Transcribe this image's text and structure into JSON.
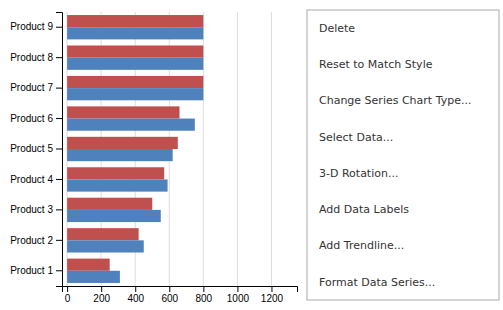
{
  "chart_data": {
    "type": "bar",
    "orientation": "horizontal",
    "categories": [
      "Product 1",
      "Product 2",
      "Product 3",
      "Product 4",
      "Product 5",
      "Product 6",
      "Product 7",
      "Product 8",
      "Product 9"
    ],
    "series": [
      {
        "color": "#C0504D",
        "values": [
          250,
          420,
          500,
          570,
          650,
          660,
          800,
          800,
          800
        ]
      },
      {
        "color": "#4F81BD",
        "values": [
          310,
          450,
          550,
          590,
          620,
          750,
          800,
          800,
          800
        ]
      }
    ],
    "xlim": [
      -30,
      1350
    ],
    "xticks": [
      0,
      200,
      400,
      600,
      800,
      1000,
      1200
    ],
    "grid": true,
    "annotations": [
      "Delete",
      "Reset to Match Style",
      "Change Series Chart Type...",
      "Select Data...",
      "3-D Rotation...",
      "Add Data Labels",
      "Add Trendline...",
      "Format Data Series..."
    ]
  }
}
